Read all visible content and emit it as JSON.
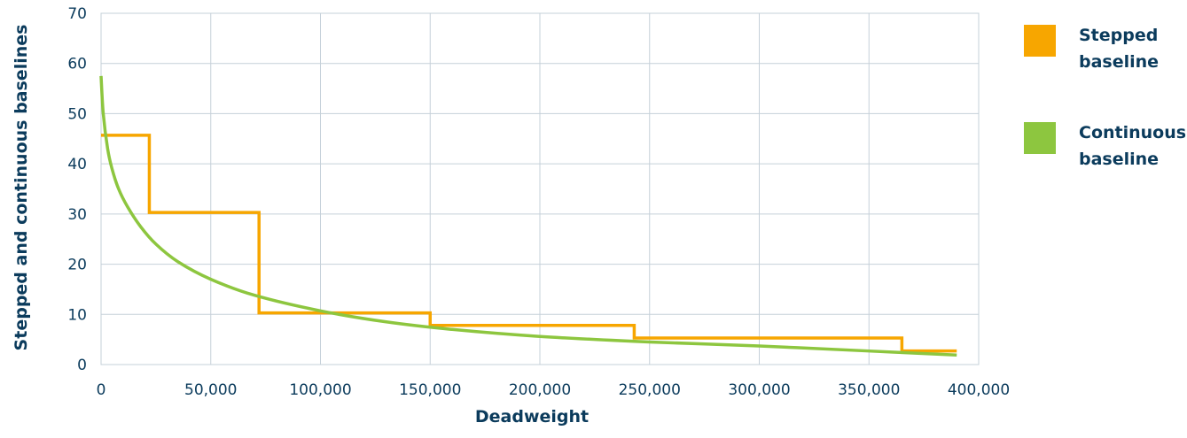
{
  "chart_data": {
    "type": "line",
    "title": "",
    "xlabel": "Deadweight",
    "ylabel": "Stepped and continuous baselines",
    "xlim": [
      0,
      390000
    ],
    "ylim": [
      0,
      70
    ],
    "x_ticks": [
      0,
      50000,
      100000,
      150000,
      200000,
      250000,
      300000,
      350000,
      400000
    ],
    "x_tick_labels": [
      "0",
      "50,000",
      "100,000",
      "150,000",
      "200,000",
      "250,000",
      "300,000",
      "350,000",
      "400,000"
    ],
    "y_ticks": [
      0,
      10,
      20,
      30,
      40,
      50,
      60,
      70
    ],
    "y_tick_labels": [
      "0",
      "10",
      "20",
      "30",
      "40",
      "50",
      "60",
      "70"
    ],
    "grid": true,
    "legend_position": "right",
    "series": [
      {
        "name": "Stepped baseline",
        "name_lines": [
          "Stepped",
          "baseline"
        ],
        "color": "#f7a600",
        "style": "step",
        "x": [
          0,
          22000,
          22000,
          72000,
          72000,
          150000,
          150000,
          243000,
          243000,
          365000,
          365000,
          390000
        ],
        "y": [
          45.7,
          45.7,
          30.3,
          30.3,
          10.3,
          10.3,
          7.8,
          7.8,
          5.3,
          5.3,
          2.7,
          2.7
        ]
      },
      {
        "name": "Continuous baseline",
        "name_lines": [
          "Continuous",
          "baseline"
        ],
        "color": "#8dc63f",
        "style": "smooth",
        "x": [
          0,
          1000,
          3000,
          5000,
          8000,
          12000,
          18000,
          25000,
          35000,
          50000,
          70000,
          100000,
          130000,
          160000,
          200000,
          250000,
          300000,
          350000,
          390000
        ],
        "y": [
          57.5,
          50.0,
          43.0,
          39.0,
          35.0,
          31.5,
          27.5,
          24.0,
          20.5,
          17.0,
          13.8,
          10.7,
          8.5,
          7.0,
          5.6,
          4.5,
          3.7,
          2.7,
          1.9
        ]
      }
    ]
  }
}
